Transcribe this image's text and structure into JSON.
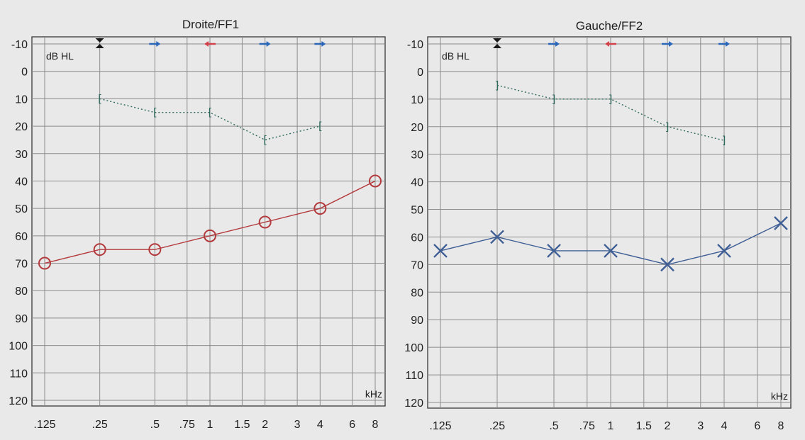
{
  "colors": {
    "background": "#eae9ea",
    "air_conduction_right": "#b33a3c",
    "air_conduction_left": "#3f5f95",
    "masked_bone_conduction": "#2e6a5c",
    "no_response_arrow_blue": "#2a67b8",
    "no_response_arrow_red": "#d2424b",
    "loudness_marker": "#1a1a1a"
  },
  "chart_data": [
    {
      "type": "line",
      "title": "Droite/FF1",
      "ylabel": "dB HL",
      "xunit": "kHz",
      "ylim": [
        -10,
        120
      ],
      "yaxis_inverted": true,
      "xscale": "log",
      "grid": true,
      "ytick_labels": [
        "-10",
        "0",
        "10",
        "20",
        "30",
        "40",
        "50",
        "60",
        "70",
        "80",
        "90",
        "100",
        "110",
        "120"
      ],
      "xtick_labels": [
        ".125",
        ".25",
        ".5",
        ".75",
        "1",
        "1.5",
        "2",
        "3",
        "4",
        "6",
        "8"
      ],
      "series": [
        {
          "marker": "circle",
          "line": "solid",
          "color": "#b33a3c",
          "x": [
            0.125,
            0.25,
            0.5,
            1,
            2,
            4,
            8
          ],
          "y": [
            70,
            65,
            65,
            60,
            55,
            50,
            40
          ]
        },
        {
          "marker": "bracket-left",
          "line": "dotted",
          "color": "#2e6a5c",
          "x": [
            0.25,
            0.5,
            1,
            2,
            4
          ],
          "y": [
            10,
            15,
            15,
            25,
            20
          ]
        }
      ],
      "top_markers": [
        {
          "x": 0.25,
          "symbol": "double-arrow",
          "color": "#1a1a1a"
        },
        {
          "x": 0.5,
          "symbol": "arrow-right",
          "color": "#2a67b8"
        },
        {
          "x": 1,
          "symbol": "arrow-left",
          "color": "#d2424b"
        },
        {
          "x": 2,
          "symbol": "arrow-right",
          "color": "#2a67b8"
        },
        {
          "x": 4,
          "symbol": "arrow-right",
          "color": "#2a67b8"
        }
      ]
    },
    {
      "type": "line",
      "title": "Gauche/FF2",
      "ylabel": "dB HL",
      "xunit": "kHz",
      "ylim": [
        -10,
        120
      ],
      "yaxis_inverted": true,
      "xscale": "log",
      "grid": true,
      "ytick_labels": [
        "-10",
        "0",
        "10",
        "20",
        "30",
        "40",
        "50",
        "60",
        "70",
        "80",
        "90",
        "100",
        "110",
        "120"
      ],
      "xtick_labels": [
        ".125",
        ".25",
        ".5",
        ".75",
        "1",
        "1.5",
        "2",
        "3",
        "4",
        "6",
        "8"
      ],
      "series": [
        {
          "marker": "x",
          "line": "solid",
          "color": "#3f5f95",
          "x": [
            0.125,
            0.25,
            0.5,
            1,
            2,
            4,
            8
          ],
          "y": [
            65,
            60,
            65,
            65,
            70,
            65,
            55
          ]
        },
        {
          "marker": "bracket-right",
          "line": "dotted",
          "color": "#2e6a5c",
          "x": [
            0.25,
            0.5,
            1,
            2,
            4
          ],
          "y": [
            5,
            10,
            10,
            20,
            25
          ]
        }
      ],
      "top_markers": [
        {
          "x": 0.25,
          "symbol": "double-arrow",
          "color": "#1a1a1a"
        },
        {
          "x": 0.5,
          "symbol": "arrow-right",
          "color": "#2a67b8"
        },
        {
          "x": 1,
          "symbol": "arrow-left",
          "color": "#d2424b"
        },
        {
          "x": 2,
          "symbol": "arrow-right",
          "color": "#2a67b8"
        },
        {
          "x": 4,
          "symbol": "arrow-right",
          "color": "#2a67b8"
        }
      ]
    }
  ]
}
